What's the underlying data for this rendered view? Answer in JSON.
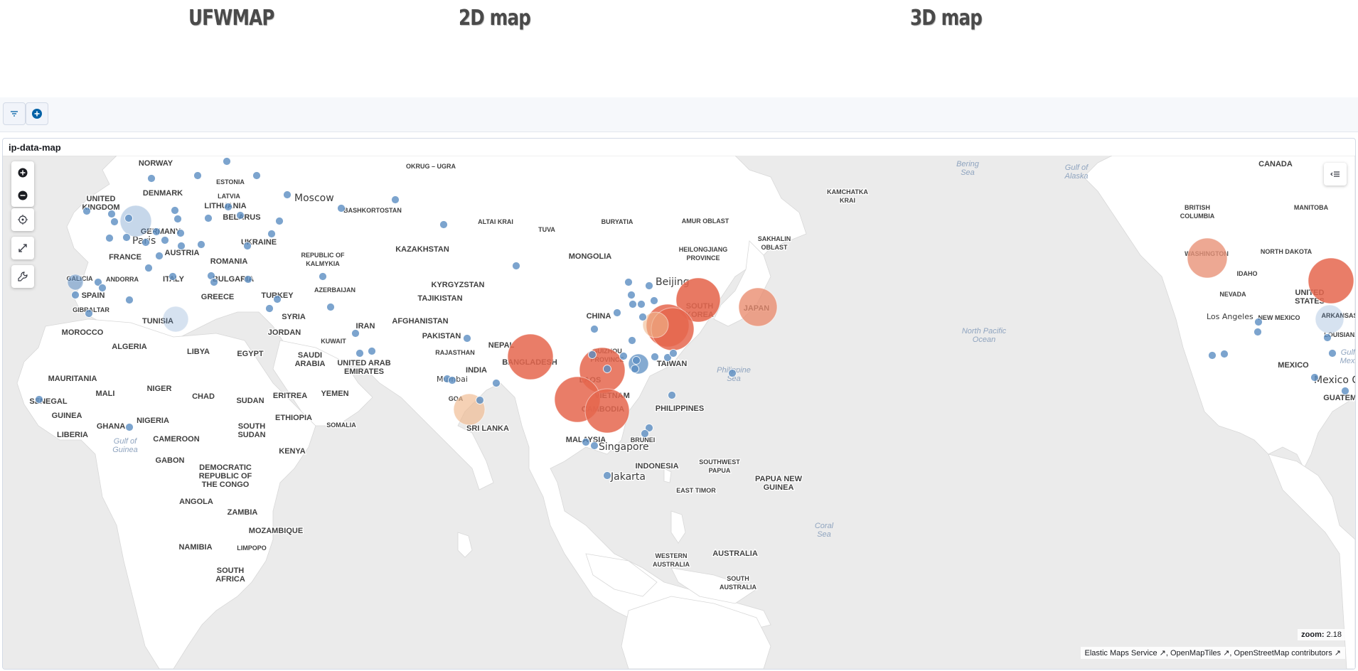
{
  "nav": {
    "brand": "UFWMAP",
    "link_2d": "2D map",
    "link_3d": "3D map"
  },
  "panel": {
    "title": "ip-data-map"
  },
  "map": {
    "zoom_label": "zoom:",
    "zoom_value": "2.18",
    "attribution": [
      "Elastic Maps Service",
      "OpenMapTiles",
      "OpenStreetMap contributors"
    ],
    "cities": [
      "Moscow",
      "Paris",
      "Beijing",
      "Mumbai",
      "Singapore",
      "Jakarta",
      "Los Angeles",
      "Mexico City"
    ],
    "city_label_partial_mexico": "Mexico C",
    "labels_large": [
      "UNITED KINGDOM",
      "DENMARK",
      "NORWAY",
      "ESTONIA",
      "LATVIA",
      "LITHUANIA",
      "BELARUS",
      "GERMANY",
      "FRANCE",
      "AUSTRIA",
      "UKRAINE",
      "ROMANIA",
      "ITALY",
      "BULGARIA",
      "GREECE",
      "TURKEY",
      "SPAIN",
      "ANDORRA",
      "GALICIA",
      "GIBRALTAR",
      "TUNISIA",
      "MOROCCO",
      "ALGERIA",
      "LIBYA",
      "EGYPT",
      "SYRIA",
      "IRAN",
      "JORDAN",
      "SAUDI ARABIA",
      "KUWAIT",
      "UNITED ARAB EMIRATES",
      "YEMEN",
      "ERITREA",
      "SUDAN",
      "SOUTH SUDAN",
      "ETHIOPIA",
      "SOMALIA",
      "KENYA",
      "CHAD",
      "NIGER",
      "MALI",
      "MAURITANIA",
      "SENEGAL",
      "GUINEA",
      "LIBERIA",
      "GHANA",
      "NIGERIA",
      "CAMEROON",
      "GABON",
      "DEMOCRATIC REPUBLIC OF THE CONGO",
      "ANGOLA",
      "ZAMBIA",
      "MOZAMBIQUE",
      "NAMIBIA",
      "SOUTH AFRICA",
      "LIMPOPO",
      "KAZAKHSTAN",
      "REPUBLIC OF KALMYKIA",
      "AZERBAIJAN",
      "BASHKORTOSTAN",
      "OKRUG – UGRA",
      "ALTAI KRAI",
      "TUVA",
      "BURYATIA",
      "AMUR OBLAST",
      "KAMCHATKA KRAI",
      "SAKHALIN OBLAST",
      "HEILONGJIANG PROVINCE",
      "MONGOLIA",
      "KYRGYZSTAN",
      "TAJIKISTAN",
      "AFGHANISTAN",
      "PAKISTAN",
      "NEPAL",
      "INDIA",
      "RAJASTHAN",
      "GOA",
      "SRI LANKA",
      "BANGLADESH",
      "CHINA",
      "GUIZHOU PROVINCE",
      "LAOS",
      "VIETNAM",
      "CAMBODIA",
      "TAIWAN",
      "PHILIPPINES",
      "MALAYSIA",
      "BRUNEI",
      "INDONESIA",
      "SOUTHWEST PAPUA",
      "PAPUA NEW GUINEA",
      "EAST TIMOR",
      "WESTERN AUSTRALIA",
      "AUSTRALIA",
      "SOUTH AUSTRALIA",
      "SOUTH KOREA",
      "JAPAN",
      "CANADA",
      "BRITISH COLUMBIA",
      "MANITOBA",
      "WASHINGTON",
      "NORTH DAKOTA",
      "IDAHO",
      "NEVADA",
      "UNITED STATES",
      "NEW MEXICO",
      "ARKANSAS",
      "LOUISIANA",
      "MEXICO",
      "GUATEMALA"
    ],
    "sea_labels": [
      "Bering Sea",
      "Gulf of Alaska",
      "North Pacific Ocean",
      "Philippine Sea",
      "Coral Sea",
      "Gulf of Guinea",
      "Gulf of Mexico"
    ],
    "colors": {
      "background": "#ebebeb",
      "land": "#ffffff",
      "dot_blue": "#5b8dc2",
      "bubble_red": "#e5664d",
      "bubble_peach": "#f0b98d"
    }
  }
}
